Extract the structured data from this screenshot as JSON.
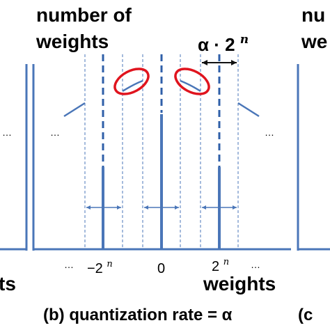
{
  "panel_b": {
    "y_label_line1": "number of",
    "y_label_line2": "weights",
    "step_label_alpha": "α · 2",
    "step_label_exp": "n",
    "ellipsis": "…",
    "tick_neg": "−2",
    "tick_neg_exp": "n",
    "tick_zero": "0",
    "tick_pos": "2",
    "tick_pos_exp": "n",
    "x_label": "weights",
    "caption": "(b) quantization rate = α",
    "colors": {
      "axis": "#4a76b8",
      "highlight": "#e0141e",
      "guide": "#4a76b8"
    }
  },
  "panel_a_partial": {
    "x_label_fragment": "ts",
    "ellipsis": "…"
  },
  "panel_c_partial": {
    "y_label_line1_fragment": "nu",
    "y_label_line2_fragment": "we",
    "caption_fragment": "(c"
  }
}
